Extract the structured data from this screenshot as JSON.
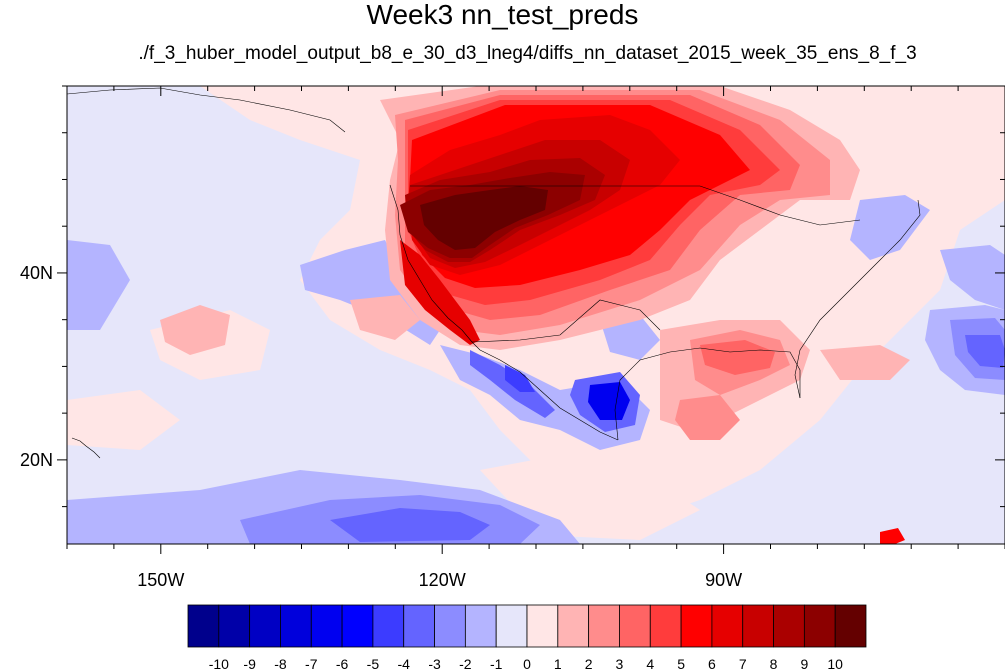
{
  "title": "Week3 nn_test_preds",
  "subtitle": "./f_3_huber_model_output_b8_e_30_d3_lneg4/diffs_nn_dataset_2015_week_35_ens_8_f_3",
  "map": {
    "projection": "cylindrical-equidistant",
    "lon_range": [
      -160,
      -60
    ],
    "lat_range": [
      11,
      60
    ],
    "lon_ticks": [
      {
        "lon": -150,
        "label": "150W"
      },
      {
        "lon": -120,
        "label": "120W"
      },
      {
        "lon": -90,
        "label": "90W"
      }
    ],
    "lat_ticks": [
      {
        "lat": 40,
        "label": "40N"
      },
      {
        "lat": 20,
        "label": "20N"
      }
    ],
    "ocean_background_color": "#e6e6fa",
    "outline_color": "#000000"
  },
  "colorbar": {
    "labels": [
      "-10",
      "-9",
      "-8",
      "-7",
      "-6",
      "-5",
      "-4",
      "-3",
      "-2",
      "-1",
      "0",
      "1",
      "2",
      "3",
      "4",
      "5",
      "6",
      "7",
      "8",
      "9",
      "10"
    ],
    "colors": [
      "#00008c",
      "#0000a8",
      "#0000c4",
      "#0000dc",
      "#0000f0",
      "#0000ff",
      "#3c3cff",
      "#6464ff",
      "#8c8cff",
      "#b4b4ff",
      "#e6e6fa",
      "#ffe6e6",
      "#ffb4b4",
      "#ff8c8c",
      "#ff6464",
      "#ff3c3c",
      "#ff0000",
      "#e60000",
      "#c80000",
      "#aa0000",
      "#8c0000",
      "#640000"
    ]
  }
}
